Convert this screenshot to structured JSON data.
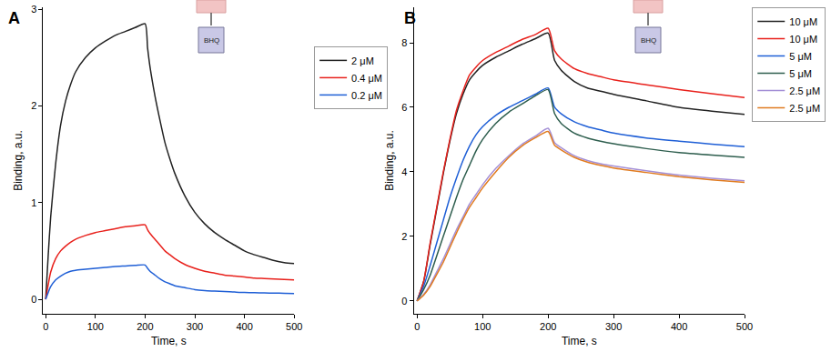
{
  "chart_data": [
    {
      "type": "line",
      "title": "A",
      "xlabel": "Time, s",
      "ylabel": "Binding, a.u.",
      "annotations": [
        {
          "text": "BHQ"
        }
      ],
      "x": [
        0,
        5,
        10,
        20,
        30,
        40,
        50,
        60,
        80,
        100,
        120,
        140,
        160,
        180,
        200,
        205,
        210,
        220,
        230,
        240,
        250,
        260,
        280,
        300,
        320,
        340,
        360,
        380,
        400,
        420,
        440,
        460,
        480,
        500
      ],
      "series": [
        {
          "name": "2 μM",
          "color": "#222222",
          "values": [
            0,
            0.45,
            0.85,
            1.4,
            1.8,
            2.05,
            2.22,
            2.35,
            2.5,
            2.6,
            2.67,
            2.73,
            2.77,
            2.81,
            2.85,
            2.6,
            2.4,
            2.1,
            1.85,
            1.62,
            1.45,
            1.3,
            1.07,
            0.9,
            0.78,
            0.69,
            0.62,
            0.56,
            0.5,
            0.46,
            0.43,
            0.4,
            0.38,
            0.37
          ]
        },
        {
          "name": "0.4 μM",
          "color": "#e8211c",
          "values": [
            0,
            0.15,
            0.28,
            0.42,
            0.5,
            0.55,
            0.59,
            0.62,
            0.66,
            0.69,
            0.71,
            0.73,
            0.75,
            0.76,
            0.77,
            0.72,
            0.68,
            0.62,
            0.56,
            0.5,
            0.46,
            0.42,
            0.36,
            0.32,
            0.29,
            0.27,
            0.25,
            0.24,
            0.23,
            0.22,
            0.215,
            0.21,
            0.205,
            0.2
          ]
        },
        {
          "name": "0.2 μM",
          "color": "#1f5fd6",
          "values": [
            0,
            0.07,
            0.13,
            0.2,
            0.24,
            0.27,
            0.29,
            0.3,
            0.31,
            0.32,
            0.33,
            0.34,
            0.345,
            0.35,
            0.355,
            0.32,
            0.29,
            0.25,
            0.21,
            0.18,
            0.16,
            0.14,
            0.12,
            0.1,
            0.09,
            0.085,
            0.08,
            0.075,
            0.07,
            0.068,
            0.066,
            0.064,
            0.062,
            0.06
          ]
        }
      ],
      "xlim": [
        -5,
        500
      ],
      "xticks": [
        0,
        100,
        200,
        300,
        400,
        500
      ],
      "ylim": [
        -0.15,
        3.02
      ],
      "yticks": [
        0,
        1,
        2,
        3
      ],
      "grid": false,
      "legend": "right"
    },
    {
      "type": "line",
      "title": "B",
      "xlabel": "Time, s",
      "ylabel": "Binding, a.u.",
      "annotations": [
        {
          "text": "BHQ"
        }
      ],
      "x": [
        0,
        10,
        20,
        30,
        40,
        50,
        60,
        70,
        80,
        90,
        100,
        120,
        140,
        160,
        180,
        200,
        210,
        220,
        240,
        260,
        280,
        300,
        350,
        400,
        450,
        500
      ],
      "series": [
        {
          "name": "10 μM",
          "color": "#222222",
          "values": [
            0,
            0.6,
            1.75,
            2.85,
            3.95,
            4.95,
            5.8,
            6.4,
            6.85,
            7.1,
            7.3,
            7.55,
            7.75,
            7.95,
            8.12,
            8.3,
            7.45,
            7.15,
            6.8,
            6.6,
            6.5,
            6.4,
            6.2,
            6.0,
            5.88,
            5.78
          ]
        },
        {
          "name": "10 μM",
          "color": "#e8211c",
          "values": [
            0,
            0.6,
            1.8,
            2.9,
            4.0,
            5.0,
            5.9,
            6.5,
            7.0,
            7.25,
            7.45,
            7.7,
            7.9,
            8.1,
            8.25,
            8.45,
            7.75,
            7.5,
            7.2,
            7.05,
            6.95,
            6.85,
            6.7,
            6.55,
            6.42,
            6.3
          ]
        },
        {
          "name": "5 μM",
          "color": "#1f5fd6",
          "values": [
            0,
            0.45,
            1.1,
            1.8,
            2.5,
            3.2,
            3.8,
            4.35,
            4.8,
            5.15,
            5.4,
            5.75,
            6.0,
            6.2,
            6.4,
            6.6,
            6.0,
            5.8,
            5.55,
            5.4,
            5.3,
            5.2,
            5.05,
            4.95,
            4.86,
            4.78
          ]
        },
        {
          "name": "5 μM",
          "color": "#2e5e4e",
          "values": [
            0,
            0.35,
            0.8,
            1.4,
            2.0,
            2.6,
            3.2,
            3.75,
            4.2,
            4.65,
            5.0,
            5.5,
            5.85,
            6.1,
            6.35,
            6.55,
            5.8,
            5.5,
            5.2,
            5.05,
            4.95,
            4.87,
            4.72,
            4.6,
            4.52,
            4.45
          ]
        },
        {
          "name": "2.5 μM",
          "color": "#a48fd6",
          "values": [
            0,
            0.2,
            0.5,
            0.9,
            1.3,
            1.75,
            2.2,
            2.6,
            3.0,
            3.3,
            3.6,
            4.1,
            4.5,
            4.85,
            5.1,
            5.35,
            4.9,
            4.75,
            4.5,
            4.35,
            4.25,
            4.18,
            4.03,
            3.9,
            3.8,
            3.72
          ]
        },
        {
          "name": "2.5 μM",
          "color": "#e07b20",
          "values": [
            0,
            0.18,
            0.45,
            0.82,
            1.2,
            1.65,
            2.1,
            2.52,
            2.9,
            3.2,
            3.5,
            4.0,
            4.45,
            4.8,
            5.05,
            5.25,
            4.82,
            4.68,
            4.45,
            4.3,
            4.2,
            4.12,
            3.98,
            3.85,
            3.75,
            3.67
          ]
        }
      ],
      "xlim": [
        -5,
        500
      ],
      "xticks": [
        0,
        100,
        200,
        300,
        400,
        500
      ],
      "ylim": [
        -0.4,
        9.1
      ],
      "yticks": [
        0,
        2,
        4,
        6,
        8
      ],
      "grid": false,
      "legend": "right"
    }
  ]
}
